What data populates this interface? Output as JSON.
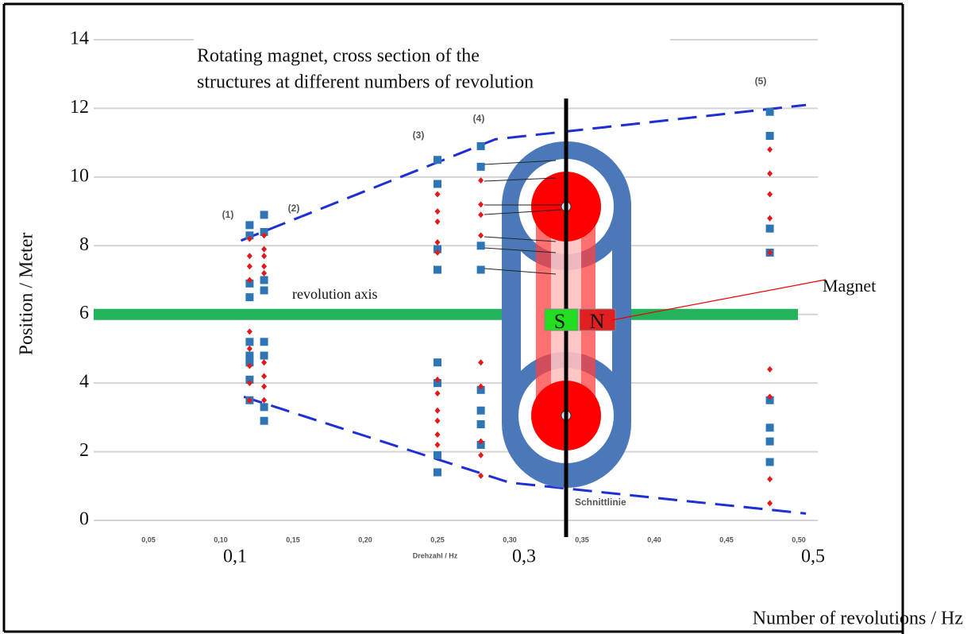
{
  "chart_data": {
    "type": "scatter",
    "title_lines": [
      "Rotating magnet, cross section of the",
      "structures at different numbers of revolution"
    ],
    "y_label": "Position / Meter",
    "x_label": "Number of revolutions / Hz",
    "x_label_small": "Drehzahl / Hz",
    "xlim": [
      0,
      0.5
    ],
    "ylim": [
      0,
      14
    ],
    "yticks": [
      0,
      2,
      4,
      6,
      8,
      10,
      12,
      14
    ],
    "xticks": [
      {
        "value": 0.05,
        "label": "0,05"
      },
      {
        "value": 0.1,
        "label": "0,10"
      },
      {
        "value": 0.15,
        "label": "0,15"
      },
      {
        "value": 0.2,
        "label": "0,20"
      },
      {
        "value": 0.25,
        "label": "0,25"
      },
      {
        "value": 0.3,
        "label": "0,30"
      },
      {
        "value": 0.35,
        "label": "0,35"
      },
      {
        "value": 0.4,
        "label": "0,40"
      },
      {
        "value": 0.45,
        "label": "0,45"
      },
      {
        "value": 0.5,
        "label": "0,50"
      }
    ],
    "major_xticks": [
      {
        "value": 0.1,
        "label": "0,1"
      },
      {
        "value": 0.3,
        "label": "0,3"
      },
      {
        "value": 0.5,
        "label": "0,5"
      }
    ],
    "grid": true,
    "series": [
      {
        "color": "#2e75b6",
        "marker": "square",
        "x": [
          0.12,
          0.12,
          0.12,
          0.12,
          0.12,
          0.12,
          0.12,
          0.12,
          0.12,
          0.13,
          0.13,
          0.13,
          0.13,
          0.13,
          0.13,
          0.13,
          0.13,
          0.25,
          0.25,
          0.25,
          0.25,
          0.25,
          0.25,
          0.25,
          0.25,
          0.28,
          0.28,
          0.28,
          0.28,
          0.28,
          0.28,
          0.28,
          0.28,
          0.48,
          0.48,
          0.48,
          0.48,
          0.48,
          0.48,
          0.48,
          0.48
        ],
        "values": [
          8.6,
          8.3,
          6.9,
          6.5,
          5.2,
          4.8,
          4.6,
          4.1,
          3.5,
          8.9,
          8.4,
          7.0,
          6.7,
          5.2,
          4.8,
          3.3,
          2.9,
          10.5,
          9.8,
          7.9,
          7.3,
          4.6,
          4.0,
          1.9,
          1.4,
          10.9,
          10.3,
          8.0,
          7.3,
          3.8,
          3.2,
          2.8,
          2.2,
          11.9,
          11.2,
          8.5,
          7.8,
          3.5,
          2.7,
          2.3,
          1.7
        ]
      },
      {
        "color": "#e31a1c",
        "marker": "diamond",
        "x": [
          0.12,
          0.12,
          0.12,
          0.12,
          0.12,
          0.12,
          0.12,
          0.12,
          0.12,
          0.13,
          0.13,
          0.13,
          0.13,
          0.13,
          0.13,
          0.13,
          0.13,
          0.13,
          0.25,
          0.25,
          0.25,
          0.25,
          0.25,
          0.25,
          0.25,
          0.25,
          0.25,
          0.25,
          0.25,
          0.28,
          0.28,
          0.28,
          0.28,
          0.28,
          0.28,
          0.28,
          0.28,
          0.28,
          0.48,
          0.48,
          0.48,
          0.48,
          0.48,
          0.48,
          0.48,
          0.48,
          0.48
        ],
        "values": [
          8.2,
          7.7,
          7.4,
          7.0,
          5.5,
          5.0,
          4.5,
          4.0,
          3.5,
          8.3,
          7.9,
          7.7,
          7.4,
          7.2,
          4.6,
          4.2,
          3.9,
          3.5,
          9.5,
          9.0,
          8.7,
          8.1,
          7.8,
          4.1,
          3.7,
          3.2,
          2.9,
          2.5,
          2.2,
          9.9,
          9.2,
          8.9,
          8.3,
          4.6,
          3.9,
          2.3,
          1.9,
          1.3,
          10.8,
          10.1,
          9.5,
          8.8,
          7.8,
          4.4,
          3.6,
          1.2,
          0.5
        ]
      }
    ],
    "envelopes": [
      {
        "color": "#1f2fd6",
        "dashed": true,
        "x": [
          0.114,
          0.29,
          0.505
        ],
        "values": [
          8.15,
          11.1,
          12.1
        ]
      },
      {
        "color": "#1f2fd6",
        "dashed": true,
        "x": [
          0.116,
          0.3,
          0.505
        ],
        "values": [
          3.6,
          1.1,
          0.2
        ]
      }
    ],
    "revolution_axis": {
      "label": "revolution axis",
      "value": 6,
      "color": "#22b35c"
    },
    "annotations": [
      "(1)",
      "(2)",
      "(3)",
      "(4)",
      "(5)"
    ],
    "cut_line_label": "Schnittlinie",
    "magnet": {
      "label": "Magnet",
      "south": "S",
      "north": "N"
    }
  }
}
